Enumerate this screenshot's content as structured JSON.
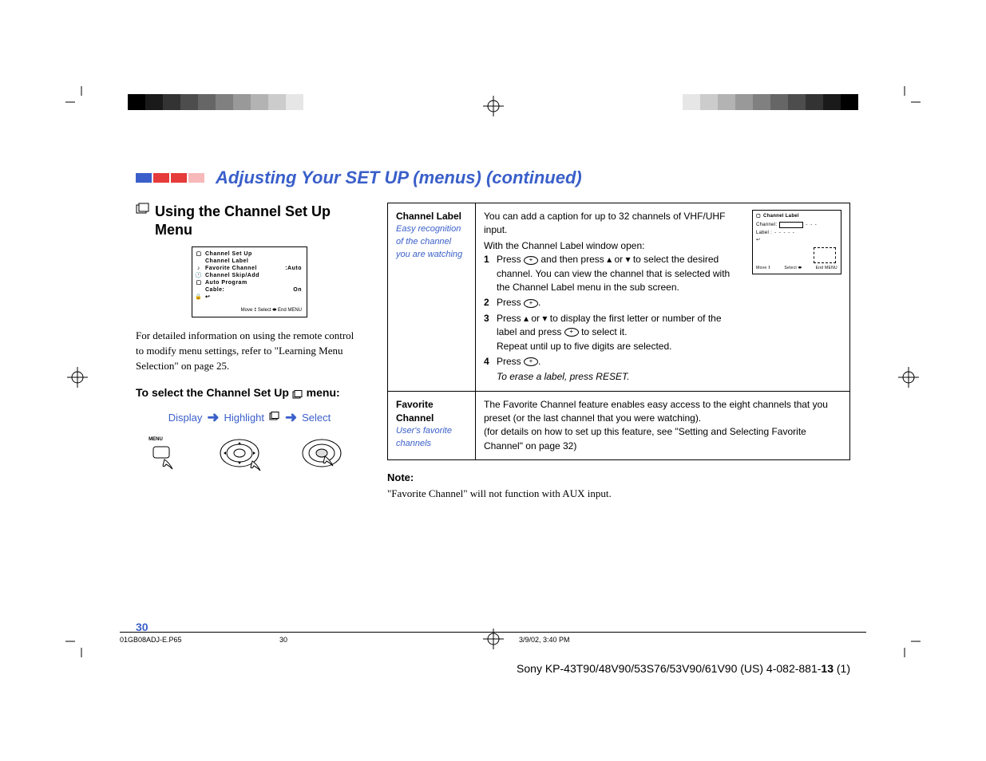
{
  "colors": {
    "accent": "#3a5fca",
    "black": "#000000",
    "white": "#ffffff"
  },
  "gradient_bar": [
    "#000000",
    "#1a1a1a",
    "#333333",
    "#4d4d4d",
    "#666666",
    "#808080",
    "#999999",
    "#b3b3b3",
    "#cccccc",
    "#e6e6e6",
    "#ffffff"
  ],
  "crop_mark_stroke": "#000000",
  "main_title": "Adjusting Your SET UP (menus) (continued)",
  "title_block_colors": [
    "#3a5fca",
    "#e63b3b",
    "#e63b3b",
    "#f7b9b9"
  ],
  "section_title": "Using the Channel Set Up Menu",
  "osd": {
    "title": "Channel Set Up",
    "rows": [
      {
        "icon": "tv",
        "label": "Channel Label",
        "value": ""
      },
      {
        "icon": "note",
        "label": "Favorite Channel",
        "value": ":Auto"
      },
      {
        "icon": "clock",
        "label": "Channel Skip/Add",
        "value": ""
      },
      {
        "icon": "box",
        "label": "Auto Program",
        "value": ""
      },
      {
        "icon": "blank",
        "label": "Cable:",
        "value": "On"
      },
      {
        "icon": "lock",
        "label": "↩",
        "value": ""
      }
    ],
    "footer": "Move ⭥   Select ⬬   End  MENU"
  },
  "intro_text": "For detailed information on using the remote control to modify menu settings, refer to \"Learning Menu Selection\" on page 25.",
  "select_heading": "To select the Channel Set Up 🗂 menu:",
  "flow": {
    "a": "Display",
    "b": "Highlight",
    "c": "Select"
  },
  "remote_menu_label": "MENU",
  "table": {
    "row1": {
      "title": "Channel Label",
      "subtitle": "Easy recognition of the channel you are watching",
      "intro1": "You can add a caption for up to 32 channels of VHF/UHF input.",
      "intro2": "With the Channel Label window open:",
      "steps": [
        "Press ⊕ and then press ↑ or ↓ to select the desired channel. You can view the channel that is selected with the Channel Label menu in the sub screen.",
        "Press ⊕.",
        "Press ↑ or ↓ to display the first letter or number of the label and press ⊕ to select it.\nRepeat until up to five digits are selected.",
        "Press ⊕."
      ],
      "erase": "To erase a label, press RESET.",
      "mini_osd": {
        "header": "Channel Label",
        "channel": "Channel:",
        "label": "Label   :",
        "dashes": "- - -\n- - - - -",
        "footer_l": "Move ⭥",
        "footer_m": "Select ⬬",
        "footer_r": "End  MENU"
      }
    },
    "row2": {
      "title": "Favorite Channel",
      "subtitle": "User's favorite channels",
      "line1": "The Favorite Channel feature enables easy access to the eight channels that you preset (or the last channel that you were watching).",
      "line2": "(for details on how to set up this feature, see \"Setting and Selecting Favorite Channel\" on page 32)"
    }
  },
  "note_heading": "Note:",
  "note_text": "\"Favorite Channel\" will not function with AUX input.",
  "page_number": "30",
  "footer": {
    "file": "01GB08ADJ-E.P65",
    "page": "30",
    "date": "3/9/02, 3:40 PM"
  },
  "bottom_line": {
    "text": "Sony KP-43T90/48V90/53S76/53V90/61V90 (US) 4-082-881-",
    "bold": "13",
    "suffix": " (1)"
  }
}
